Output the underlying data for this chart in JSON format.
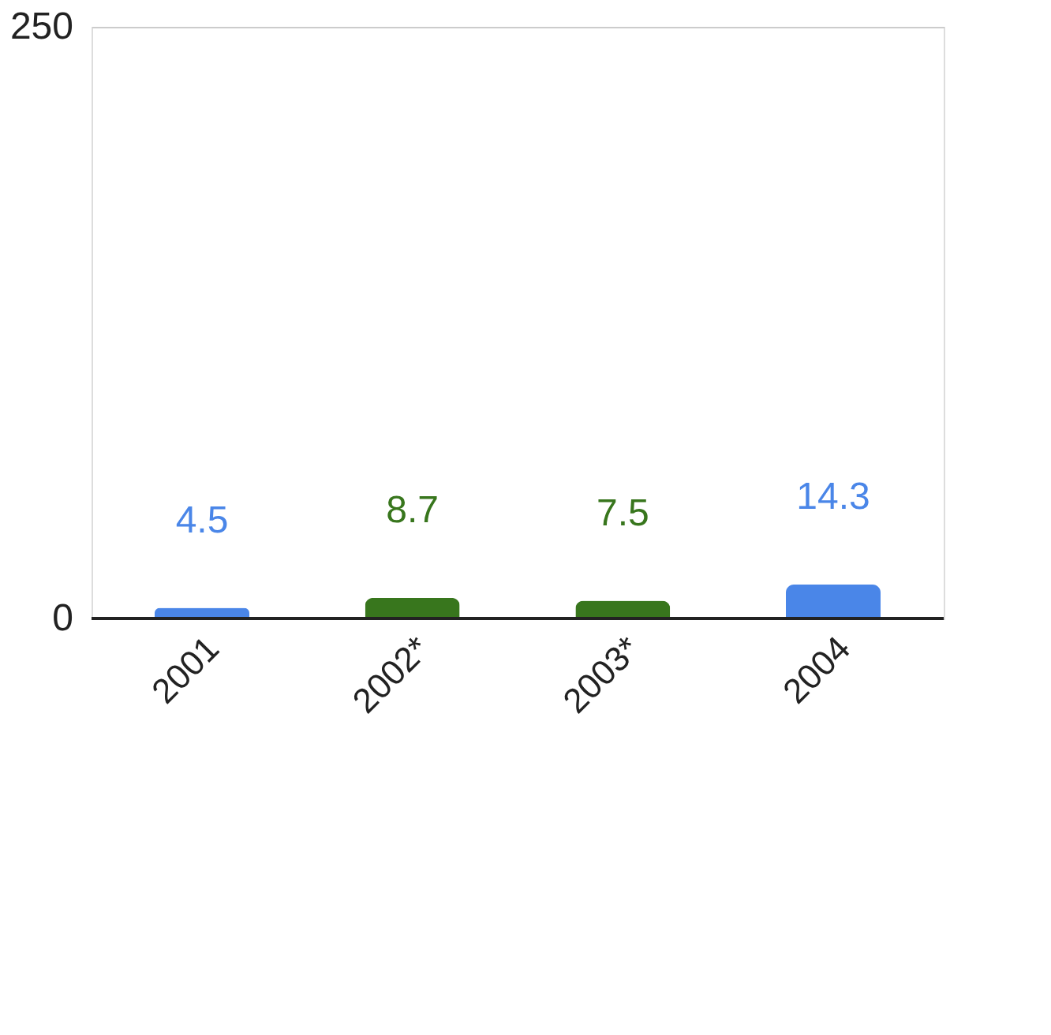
{
  "chart_data": {
    "type": "bar",
    "categories": [
      "2001",
      "2002*",
      "2003*",
      "2004"
    ],
    "values": [
      4.5,
      8.7,
      7.5,
      14.3
    ],
    "colors": [
      "#4a86e8",
      "#38761d",
      "#38761d",
      "#4a86e8"
    ],
    "ylim": [
      0,
      250
    ],
    "yticks": [
      0,
      250
    ],
    "grid": "y",
    "data_labels": true
  }
}
